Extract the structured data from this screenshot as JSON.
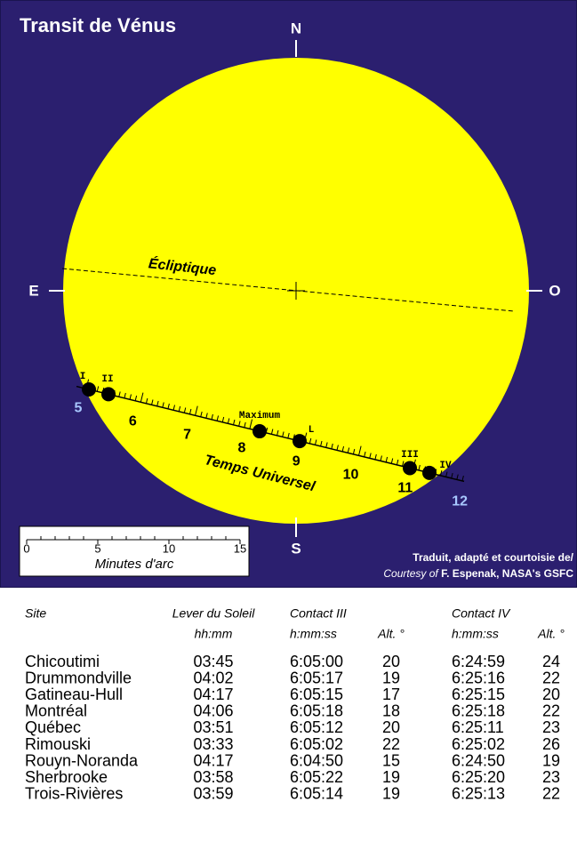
{
  "title": "Transit de Vénus",
  "compass": {
    "north": "N",
    "south": "S",
    "east": "E",
    "west": "O"
  },
  "ecliptic_label": "Écliptique",
  "time_axis": {
    "label": "Temps Universel",
    "hours": [
      "5",
      "6",
      "7",
      "8",
      "9",
      "10",
      "11",
      "12"
    ]
  },
  "contacts": [
    "I",
    "II",
    "III",
    "IV"
  ],
  "markers": {
    "maximum": "Maximum",
    "l": "L"
  },
  "scale": {
    "ticks": [
      "0",
      "5",
      "10",
      "15"
    ],
    "label": "Minutes d'arc"
  },
  "credit": {
    "line1": "Traduit, adapté et courtoisie de/",
    "courtesy": "Courtesy of",
    "author": "F. Espenak, NASA's GSFC"
  },
  "table": {
    "headers": [
      {
        "lines": [
          "Site"
        ]
      },
      {
        "lines": [
          "Lever du Soleil",
          "hh:mm"
        ]
      },
      {
        "lines": [
          "Contact III",
          "h:mm:ss"
        ]
      },
      {
        "lines": [
          "Alt. °"
        ]
      },
      {
        "lines": [
          "Contact IV",
          "h:mm:ss"
        ]
      },
      {
        "lines": [
          "Alt. °"
        ]
      }
    ],
    "rows": [
      [
        "Chicoutimi",
        "03:45",
        "6:05:00",
        "20",
        "6:24:59",
        "24"
      ],
      [
        "Drummondville",
        "04:02",
        "6:05:17",
        "19",
        "6:25:16",
        "22"
      ],
      [
        "Gatineau-Hull",
        "04:17",
        "6:05:15",
        "17",
        "6:25:15",
        "20"
      ],
      [
        "Montréal",
        "04:06",
        "6:05:18",
        "18",
        "6:25:18",
        "22"
      ],
      [
        "Québec",
        "03:51",
        "6:05:12",
        "20",
        "6:25:11",
        "23"
      ],
      [
        "Rimouski",
        "03:33",
        "6:05:02",
        "22",
        "6:25:02",
        "26"
      ],
      [
        "Rouyn-Noranda",
        "04:17",
        "6:04:50",
        "15",
        "6:24:50",
        "19"
      ],
      [
        "Sherbrooke",
        "03:58",
        "6:05:22",
        "19",
        "6:25:20",
        "23"
      ],
      [
        "Trois-Rivières",
        "03:59",
        "6:05:14",
        "19",
        "6:25:13",
        "22"
      ]
    ]
  }
}
